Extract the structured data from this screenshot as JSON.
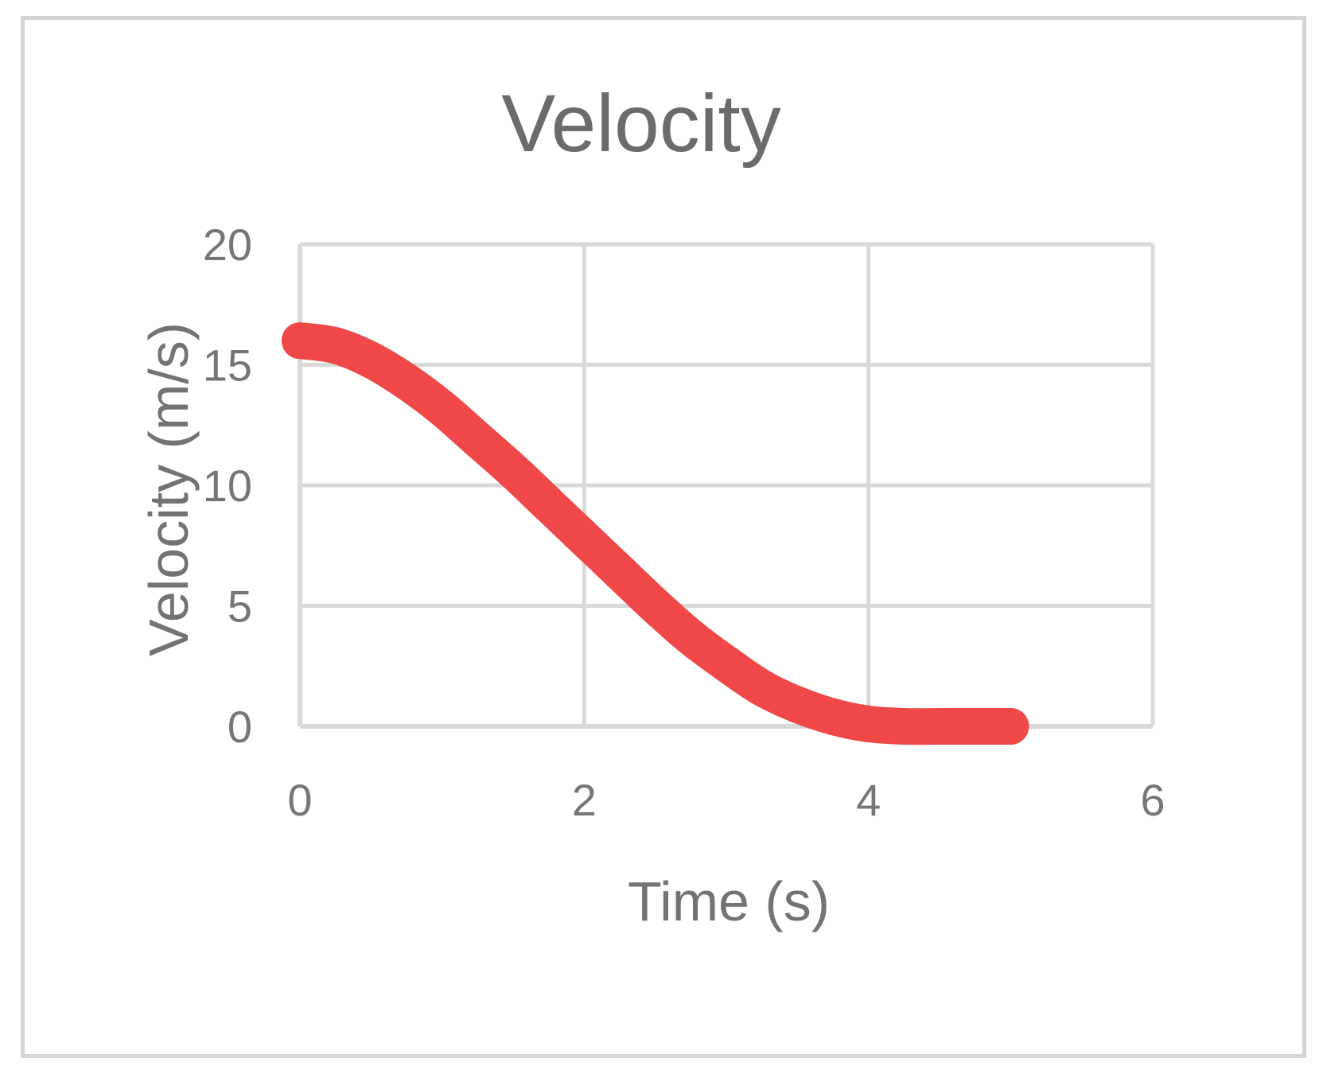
{
  "chart_data": {
    "type": "line",
    "title": "Velocity",
    "xlabel": "Time (s)",
    "ylabel": "Velocity (m/s)",
    "xlim": [
      0,
      6
    ],
    "ylim": [
      0,
      20
    ],
    "xticks": [
      "0",
      "2",
      "4",
      "6"
    ],
    "yticks": [
      "0",
      "5",
      "10",
      "15",
      "20"
    ],
    "grid": true,
    "legend": "none",
    "series": [
      {
        "name": "Velocity",
        "color": "#f04848",
        "x": [
          0,
          0.25,
          0.5,
          0.75,
          1.0,
          1.25,
          1.5,
          1.75,
          2.0,
          2.25,
          2.5,
          2.75,
          3.0,
          3.25,
          3.5,
          3.75,
          4.0,
          4.25,
          4.5,
          4.75,
          5.0
        ],
        "y": [
          16.0,
          15.8,
          15.2,
          14.3,
          13.2,
          11.9,
          10.6,
          9.2,
          7.8,
          6.4,
          5.0,
          3.7,
          2.6,
          1.6,
          0.9,
          0.4,
          0.1,
          0.0,
          0.0,
          0.0,
          0.0
        ]
      }
    ]
  }
}
